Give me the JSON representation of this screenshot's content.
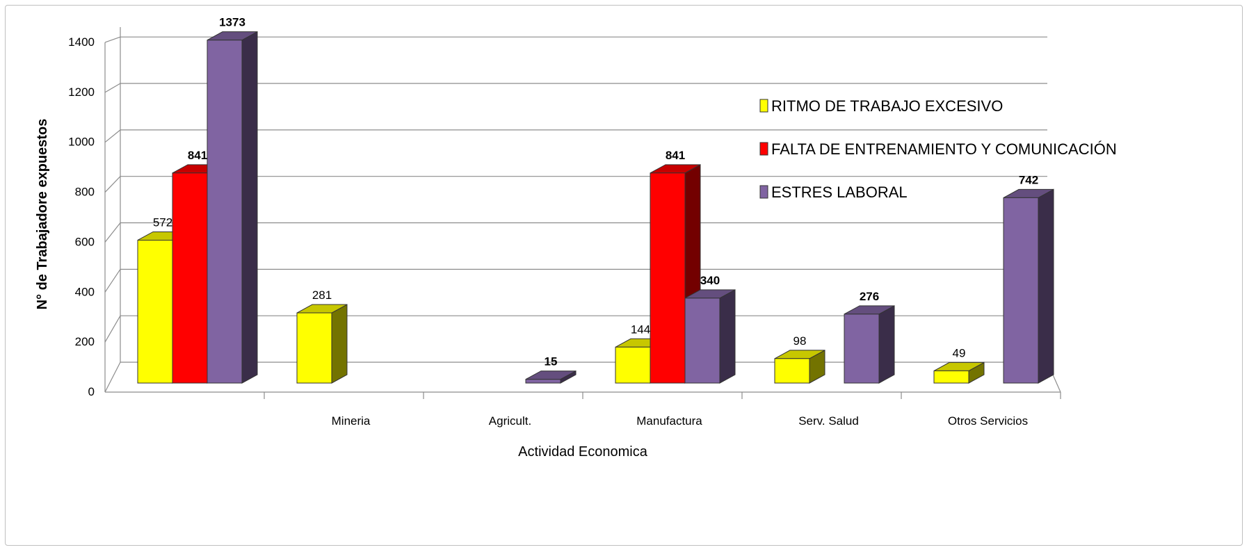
{
  "chart_data": {
    "type": "bar",
    "xlabel": "Actividad Economica",
    "ylabel": "N° de Trabajadore expuestos",
    "ylim": [
      0,
      1400
    ],
    "yticks": [
      "0",
      "200",
      "400",
      "600",
      "800",
      "1000",
      "1200",
      "1400"
    ],
    "grid": true,
    "legend_position": "right",
    "categories": [
      "",
      "Mineria",
      "Agricult.",
      "Manufactura",
      "Serv. Salud",
      "Otros Servicios"
    ],
    "series": [
      {
        "name": "RITMO DE TRABAJO EXCESIVO",
        "values": [
          572,
          281,
          null,
          144,
          98,
          49
        ],
        "labels": [
          "572",
          "281",
          "",
          "144",
          "98",
          "49"
        ]
      },
      {
        "name": "FALTA DE ENTRENAMIENTO Y COMUNICACIÓN",
        "values": [
          841,
          null,
          null,
          841,
          null,
          null
        ],
        "labels": [
          "841",
          "",
          "",
          "841",
          "",
          ""
        ]
      },
      {
        "name": "ESTRES LABORAL",
        "values": [
          1373,
          null,
          15,
          340,
          276,
          742
        ],
        "labels": [
          "1373",
          "",
          "15",
          "340",
          "276",
          "742"
        ]
      }
    ],
    "colors": {
      "RITMO DE TRABAJO EXCESIVO": "#ffff00",
      "FALTA DE ENTRENAMIENTO Y COMUNICACIÓN": "#ff0000",
      "ESTRES LABORAL": "#8064a2"
    }
  }
}
